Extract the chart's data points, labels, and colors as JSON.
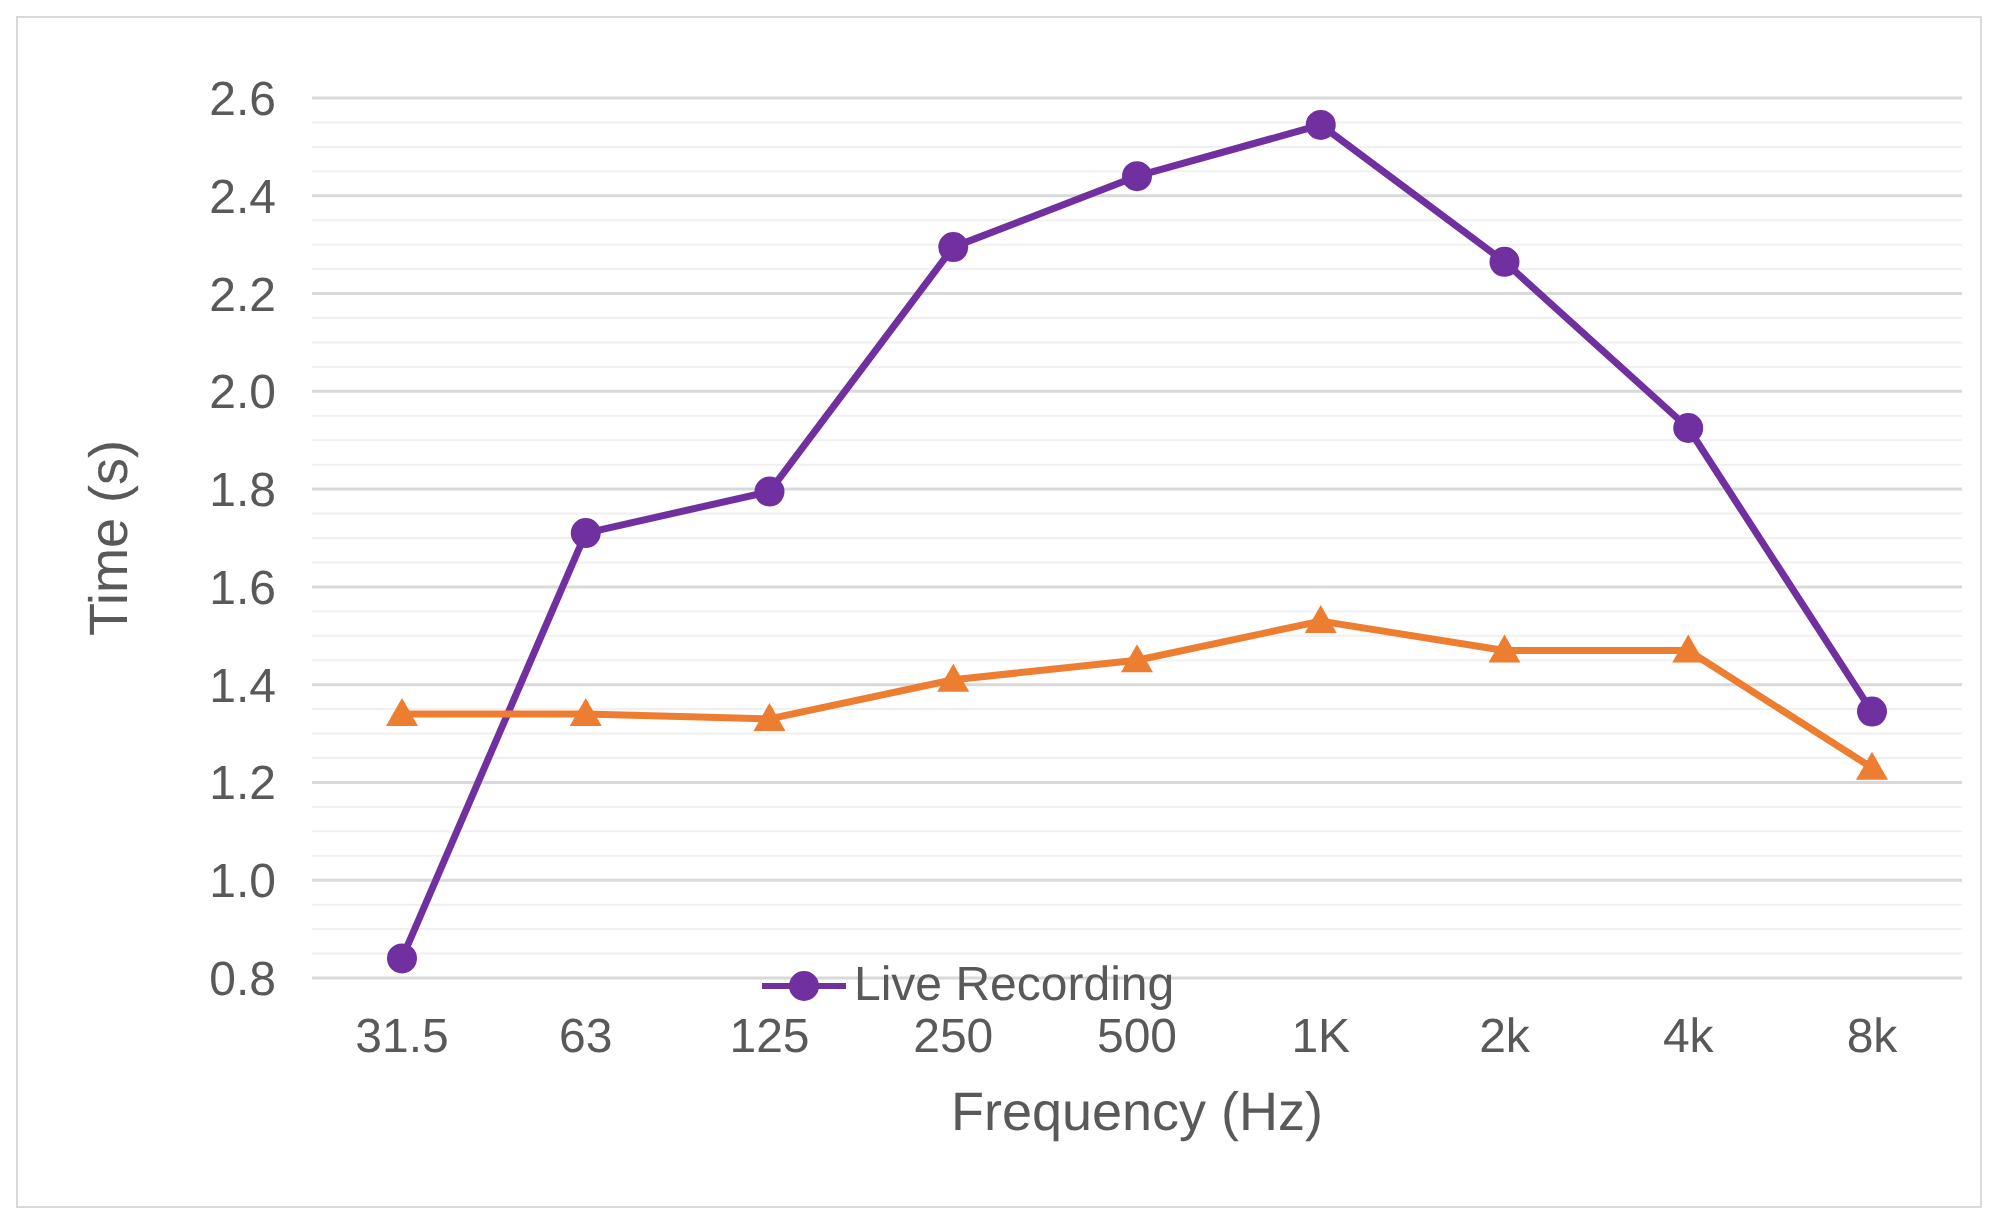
{
  "chart_data": {
    "type": "line",
    "xlabel": "Frequency  (Hz)",
    "ylabel": "Time (s)",
    "categories": [
      "31.5",
      "63",
      "125",
      "250",
      "500",
      "1K",
      "2k",
      "4k",
      "8k"
    ],
    "series": [
      {
        "name": "Live Recording",
        "color": "#7030a0",
        "marker": "circle",
        "values": [
          0.84,
          1.71,
          1.795,
          2.295,
          2.44,
          2.545,
          2.265,
          1.925,
          1.345
        ]
      },
      {
        "color": "#ed7d31",
        "marker": "triangle",
        "values": [
          1.34,
          1.34,
          1.33,
          1.41,
          1.45,
          1.53,
          1.47,
          1.47,
          1.23
        ]
      }
    ],
    "ylim": [
      0.8,
      2.6
    ],
    "yticks": [
      0.8,
      {
        "value": 0.85,
        "label": null
      },
      {
        "value": 0.9,
        "label": null
      },
      {
        "value": 0.95,
        "label": null
      },
      {
        "value": 1.0,
        "label": "1.0"
      },
      {
        "value": 1.05,
        "label": null
      },
      {
        "value": 1.1,
        "label": null
      },
      {
        "value": 1.15,
        "label": null
      },
      1.2,
      {
        "value": 1.25,
        "label": null
      },
      {
        "value": 1.3,
        "label": null
      },
      {
        "value": 1.35,
        "label": null
      },
      1.4,
      {
        "value": 1.45,
        "label": null
      },
      {
        "value": 1.5,
        "label": null
      },
      {
        "value": 1.55,
        "label": null
      },
      1.6,
      {
        "value": 1.65,
        "label": null
      },
      {
        "value": 1.7,
        "label": null
      },
      {
        "value": 1.75,
        "label": null
      },
      1.8,
      {
        "value": 1.85,
        "label": null
      },
      {
        "value": 1.9,
        "label": null
      },
      {
        "value": 1.95,
        "label": null
      },
      {
        "value": 2.0,
        "label": "2.0"
      },
      {
        "value": 2.05,
        "label": null
      },
      {
        "value": 2.1,
        "label": null
      },
      {
        "value": 2.15,
        "label": null
      },
      2.2,
      {
        "value": 2.25,
        "label": null
      },
      {
        "value": 2.3,
        "label": null
      },
      {
        "value": 2.35,
        "label": null
      },
      2.4,
      {
        "value": 2.45,
        "label": null
      },
      {
        "value": 2.5,
        "label": null
      },
      {
        "value": 2.55,
        "label": null
      },
      2.6
    ],
    "grid": "y",
    "legend": "bottom"
  }
}
